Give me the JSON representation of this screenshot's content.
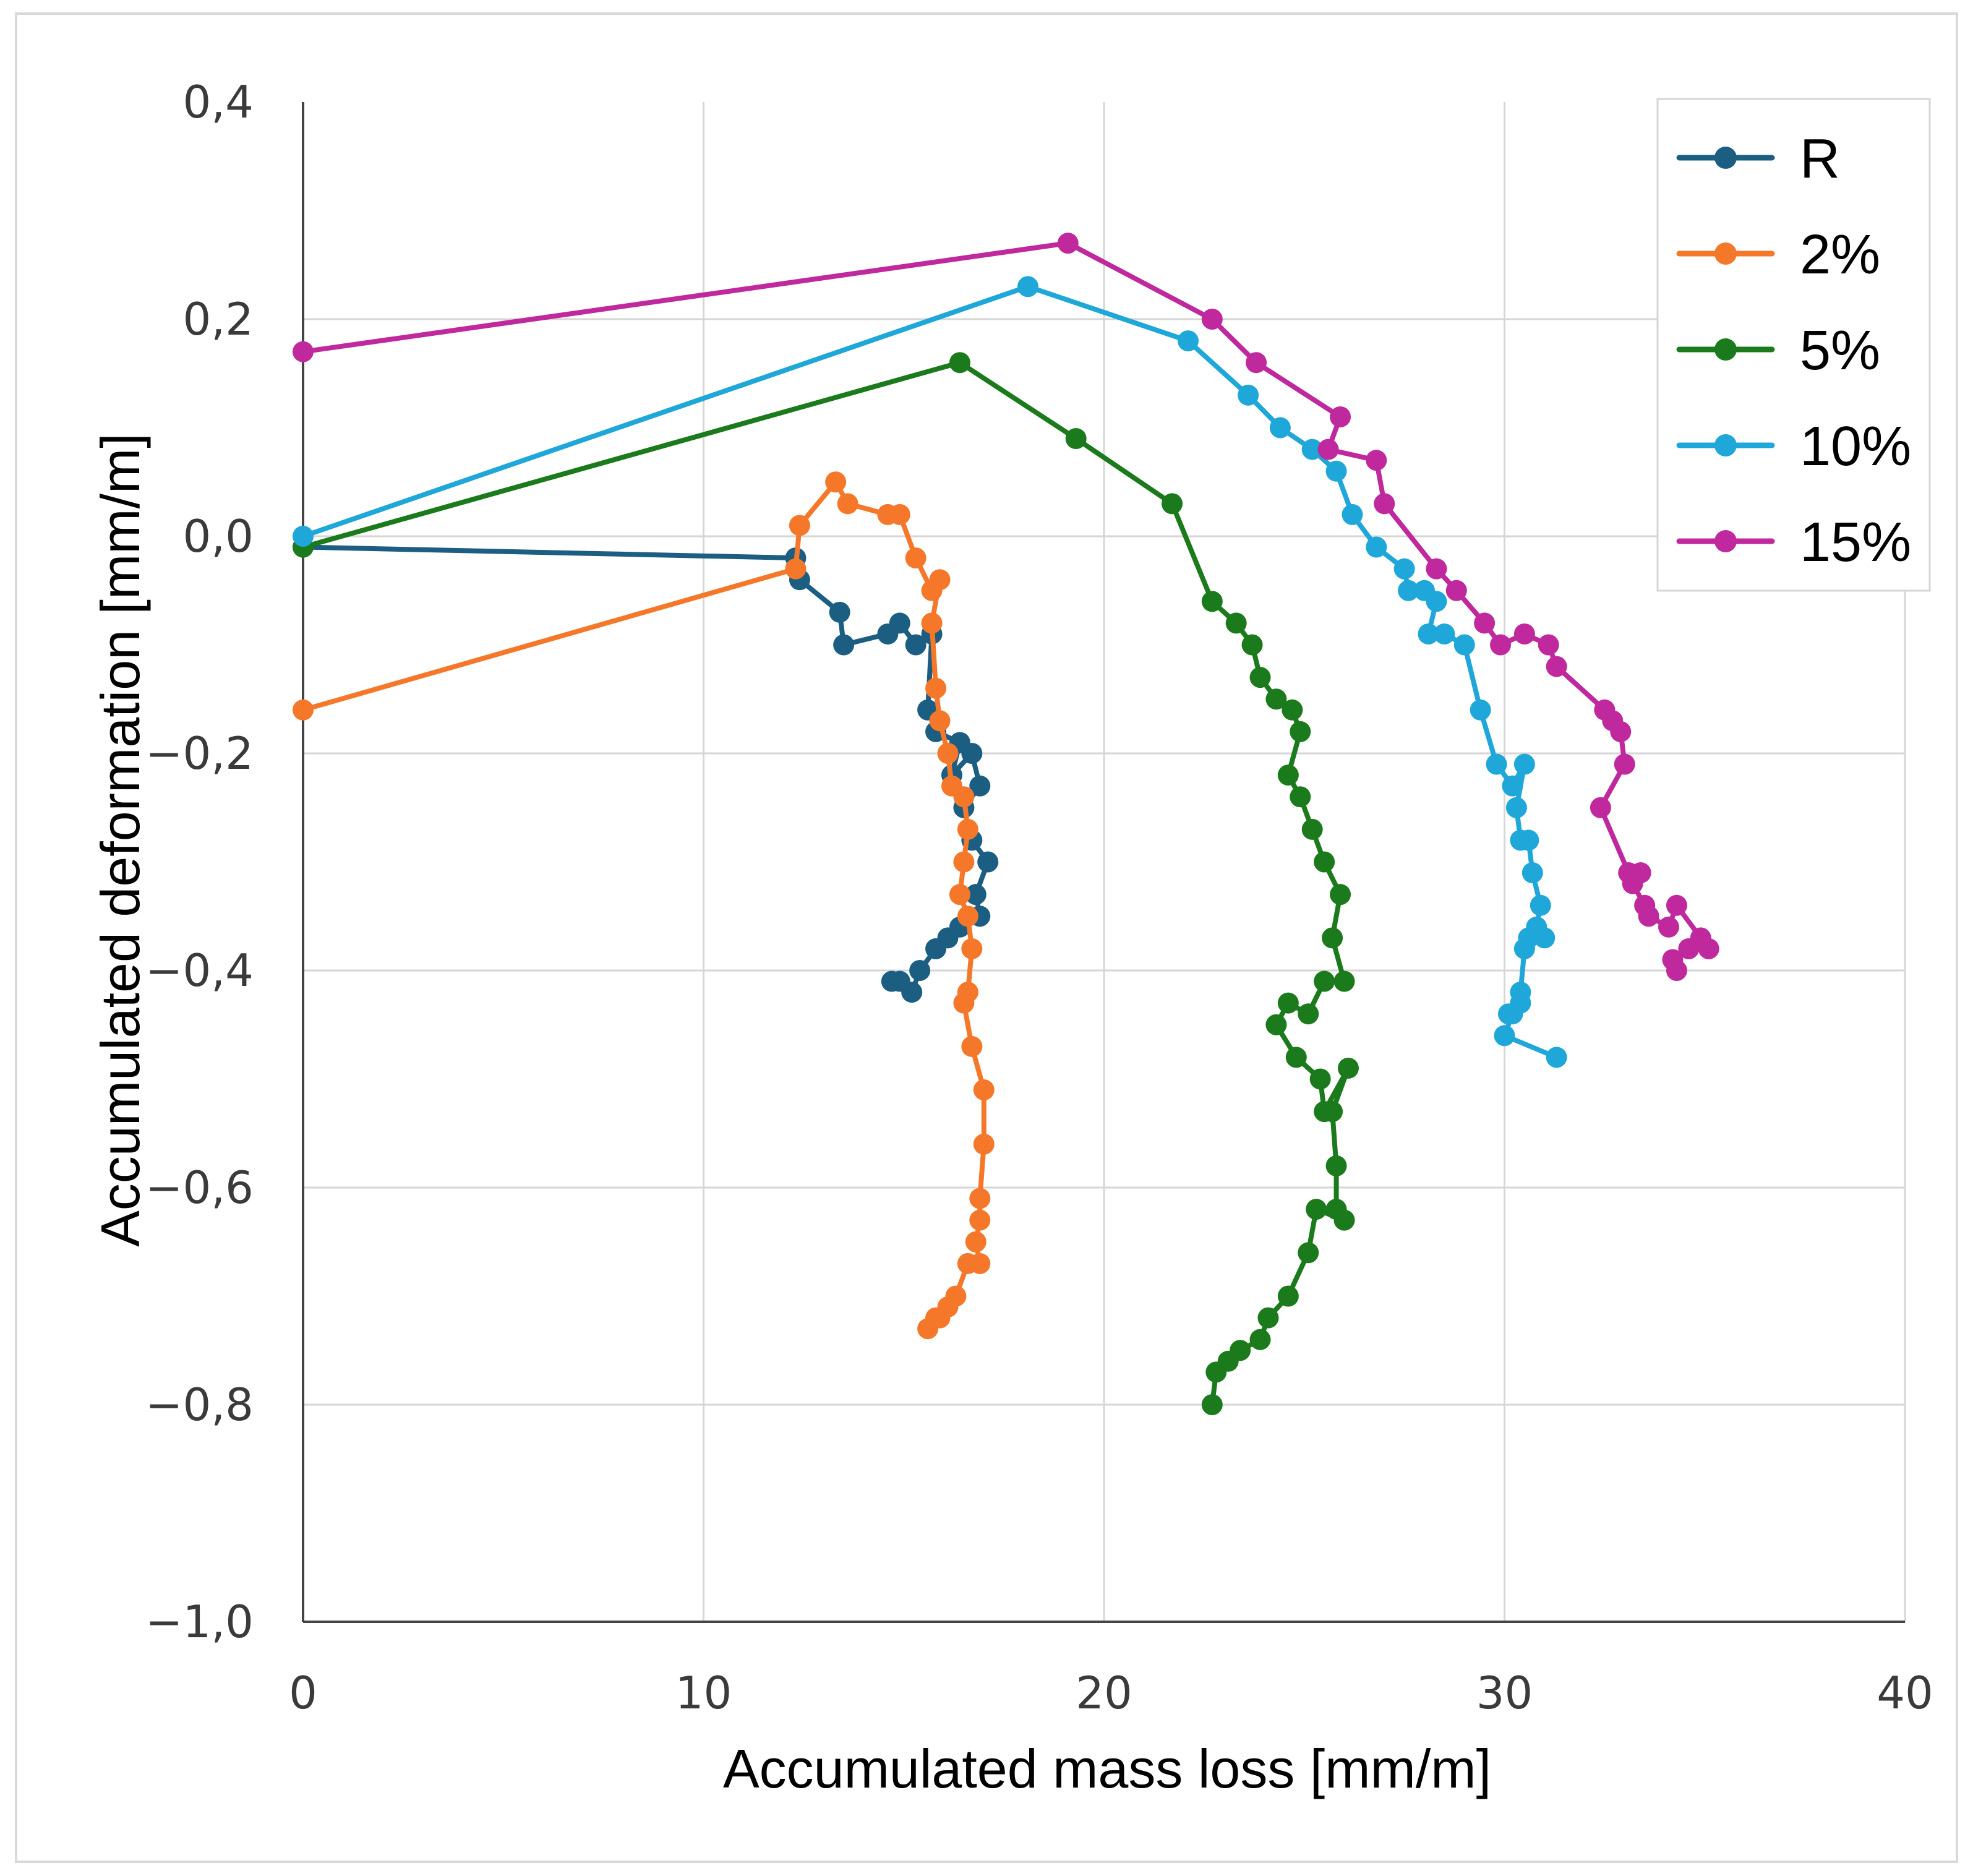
{
  "chart_data": {
    "type": "line",
    "title": "",
    "xlabel": "Accumulated mass loss [mm/m]",
    "ylabel": "Accumulated deformation [mm/m]",
    "xlim": [
      0,
      40
    ],
    "ylim": [
      -1.0,
      0.4
    ],
    "x_ticks": [
      0,
      10,
      20,
      30,
      40
    ],
    "x_tick_labels": [
      "0",
      "10",
      "20",
      "30",
      "40"
    ],
    "y_ticks": [
      0.4,
      0.2,
      0.0,
      -0.2,
      -0.4,
      -0.6,
      -0.8,
      -1.0
    ],
    "y_tick_labels": [
      "0,4",
      "0,2",
      "0,0",
      "−0,2",
      "−0,4",
      "−0,6",
      "−0,8",
      "−1,0"
    ],
    "grid": true,
    "legend_position": "top-right",
    "series": [
      {
        "name": "R",
        "color": "#1b5e82",
        "x": [
          0,
          12.3,
          12.4,
          13.4,
          13.5,
          14.6,
          14.9,
          15.3,
          15.7,
          15.6,
          15.8,
          16.4,
          16.2,
          16.7,
          16.9,
          16.5,
          16.7,
          17.1,
          16.8,
          16.9,
          16.4,
          16.1,
          15.8,
          15.4,
          15.2,
          14.9,
          14.7
        ],
        "y": [
          -0.01,
          -0.02,
          -0.04,
          -0.07,
          -0.1,
          -0.09,
          -0.08,
          -0.1,
          -0.09,
          -0.16,
          -0.18,
          -0.19,
          -0.22,
          -0.2,
          -0.23,
          -0.25,
          -0.28,
          -0.3,
          -0.33,
          -0.35,
          -0.36,
          -0.37,
          -0.38,
          -0.4,
          -0.42,
          -0.41,
          -0.41
        ]
      },
      {
        "name": "2%",
        "color": "#f5782a",
        "x": [
          0,
          12.3,
          12.4,
          13.3,
          13.6,
          14.6,
          14.9,
          15.3,
          15.7,
          15.9,
          15.7,
          15.8,
          15.9,
          16.1,
          16.2,
          16.5,
          16.6,
          16.5,
          16.4,
          16.6,
          16.7,
          16.6,
          16.5,
          16.7,
          17.0,
          17.0,
          16.9,
          16.9,
          16.8,
          16.9,
          16.6,
          16.3,
          16.1,
          15.9,
          15.8,
          15.6
        ],
        "y": [
          -0.16,
          -0.03,
          0.01,
          0.05,
          0.03,
          0.02,
          0.02,
          -0.02,
          -0.05,
          -0.04,
          -0.08,
          -0.14,
          -0.17,
          -0.2,
          -0.23,
          -0.24,
          -0.27,
          -0.3,
          -0.33,
          -0.35,
          -0.38,
          -0.42,
          -0.43,
          -0.47,
          -0.51,
          -0.56,
          -0.61,
          -0.63,
          -0.65,
          -0.67,
          -0.67,
          -0.7,
          -0.71,
          -0.72,
          -0.72,
          -0.73
        ]
      },
      {
        "name": "5%",
        "color": "#1b7a1b",
        "x": [
          0,
          16.4,
          19.3,
          21.7,
          22.7,
          23.3,
          23.7,
          23.9,
          24.3,
          24.7,
          24.9,
          24.6,
          24.9,
          25.2,
          25.5,
          25.9,
          25.7,
          26.0,
          25.5,
          25.1,
          24.6,
          24.3,
          24.8,
          25.4,
          25.5,
          26.1,
          25.7,
          25.8,
          25.8,
          26.0,
          25.3,
          25.1,
          24.6,
          24.1,
          23.9,
          23.4,
          23.1,
          22.8,
          22.7
        ],
        "y": [
          -0.01,
          0.16,
          0.09,
          0.03,
          -0.06,
          -0.08,
          -0.1,
          -0.13,
          -0.15,
          -0.16,
          -0.18,
          -0.22,
          -0.24,
          -0.27,
          -0.3,
          -0.33,
          -0.37,
          -0.41,
          -0.41,
          -0.44,
          -0.43,
          -0.45,
          -0.48,
          -0.5,
          -0.53,
          -0.49,
          -0.53,
          -0.58,
          -0.62,
          -0.63,
          -0.62,
          -0.66,
          -0.7,
          -0.72,
          -0.74,
          -0.75,
          -0.76,
          -0.77,
          -0.8
        ]
      },
      {
        "name": "10%",
        "color": "#1ea7d8",
        "x": [
          0,
          18.1,
          22.1,
          23.6,
          24.4,
          25.2,
          25.8,
          26.2,
          26.8,
          27.5,
          27.6,
          28.0,
          28.3,
          28.1,
          28.5,
          29.0,
          29.4,
          29.8,
          30.2,
          30.5,
          30.3,
          30.4,
          30.6,
          30.7,
          30.9,
          30.8,
          31.0,
          30.6,
          30.5,
          30.4,
          30.4,
          30.1,
          30.2,
          30.0,
          31.3
        ],
        "y": [
          0.0,
          0.23,
          0.18,
          0.13,
          0.1,
          0.08,
          0.06,
          0.02,
          -0.01,
          -0.03,
          -0.05,
          -0.05,
          -0.06,
          -0.09,
          -0.09,
          -0.1,
          -0.16,
          -0.21,
          -0.23,
          -0.21,
          -0.25,
          -0.28,
          -0.28,
          -0.31,
          -0.34,
          -0.36,
          -0.37,
          -0.37,
          -0.38,
          -0.42,
          -0.43,
          -0.44,
          -0.44,
          -0.46,
          -0.48
        ]
      },
      {
        "name": "15%",
        "color": "#c0289e",
        "x": [
          0,
          19.1,
          22.7,
          23.8,
          25.9,
          25.6,
          26.8,
          27.0,
          28.3,
          28.8,
          29.5,
          29.9,
          30.5,
          31.1,
          31.3,
          32.5,
          32.7,
          32.9,
          33.0,
          32.4,
          33.1,
          33.4,
          33.2,
          33.5,
          33.6,
          34.1,
          34.3,
          34.9,
          35.1,
          34.6,
          34.2,
          34.3
        ],
        "y": [
          0.17,
          0.27,
          0.2,
          0.16,
          0.11,
          0.08,
          0.07,
          0.03,
          -0.03,
          -0.05,
          -0.08,
          -0.1,
          -0.09,
          -0.1,
          -0.12,
          -0.16,
          -0.17,
          -0.18,
          -0.21,
          -0.25,
          -0.31,
          -0.31,
          -0.32,
          -0.34,
          -0.35,
          -0.36,
          -0.34,
          -0.37,
          -0.38,
          -0.38,
          -0.39,
          -0.4
        ]
      }
    ]
  }
}
